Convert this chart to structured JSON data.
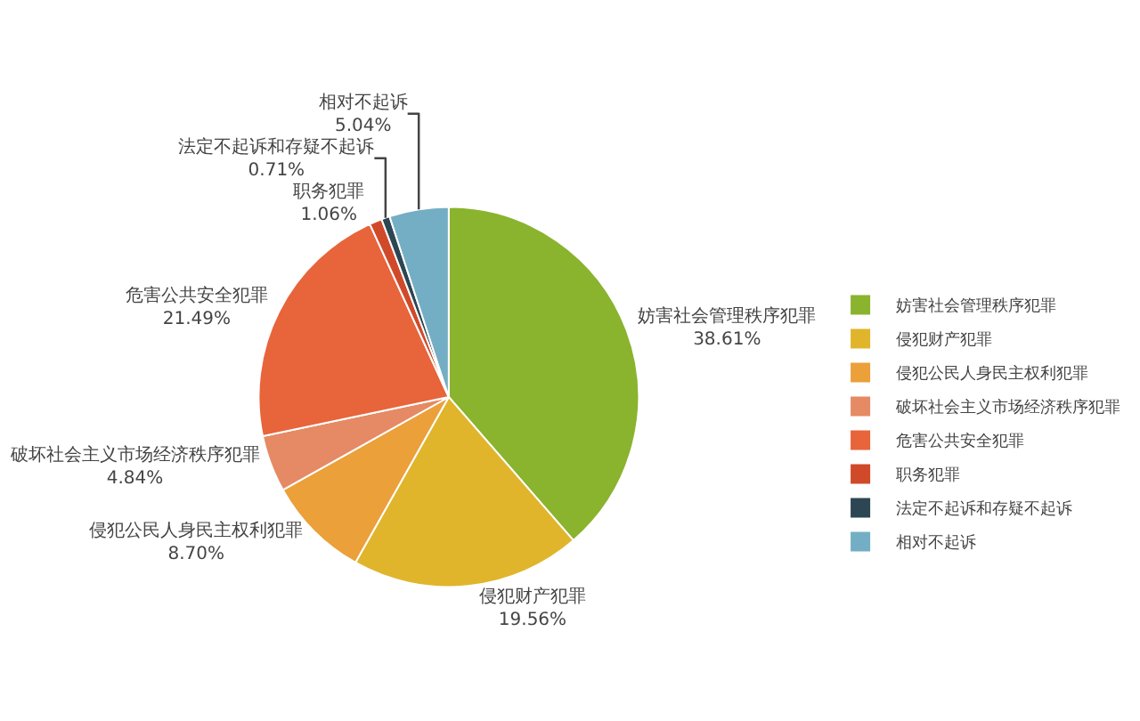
{
  "chart_data": {
    "type": "pie",
    "categories": [
      "妨害社会管理秩序犯罪",
      "侵犯财产犯罪",
      "侵犯公民人身民主权利犯罪",
      "破坏社会主义市场经济秩序犯罪",
      "危害公共安全犯罪",
      "职务犯罪",
      "法定不起诉和存疑不起诉",
      "相对不起诉"
    ],
    "values": [
      38.61,
      19.56,
      8.7,
      4.84,
      21.49,
      1.06,
      0.71,
      5.04
    ],
    "value_labels": [
      "38.61%",
      "19.56%",
      "8.70%",
      "4.84%",
      "21.49%",
      "1.06%",
      "0.71%",
      "5.04%"
    ],
    "colors": [
      "#8ab32e",
      "#e0b52c",
      "#eba03a",
      "#e58a64",
      "#e8643a",
      "#d04a2a",
      "#2c4653",
      "#74aec4"
    ],
    "legend": "right"
  }
}
